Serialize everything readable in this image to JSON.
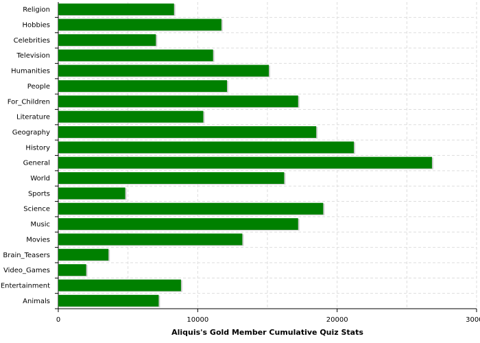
{
  "chart_data": {
    "type": "hbar",
    "xlabel": "Aliquis's Gold Member Cumulative Quiz Stats",
    "categories": [
      "Religion",
      "Hobbies",
      "Celebrities",
      "Television",
      "Humanities",
      "People",
      "For_Children",
      "Literature",
      "Geography",
      "History",
      "General",
      "World",
      "Sports",
      "Science",
      "Music",
      "Movies",
      "Brain_Teasers",
      "Video_Games",
      "Entertainment",
      "Animals"
    ],
    "values": [
      8300,
      11700,
      7000,
      11100,
      15100,
      12100,
      17200,
      10400,
      18500,
      21200,
      26800,
      16200,
      4800,
      19000,
      17200,
      13200,
      3600,
      2000,
      8800,
      7200
    ],
    "color": "#008000",
    "xlim": [
      0,
      30000
    ],
    "xticks": [
      0,
      10000,
      20000,
      30000
    ],
    "minor_xticks": [
      5000,
      15000,
      25000
    ],
    "grid": true
  }
}
